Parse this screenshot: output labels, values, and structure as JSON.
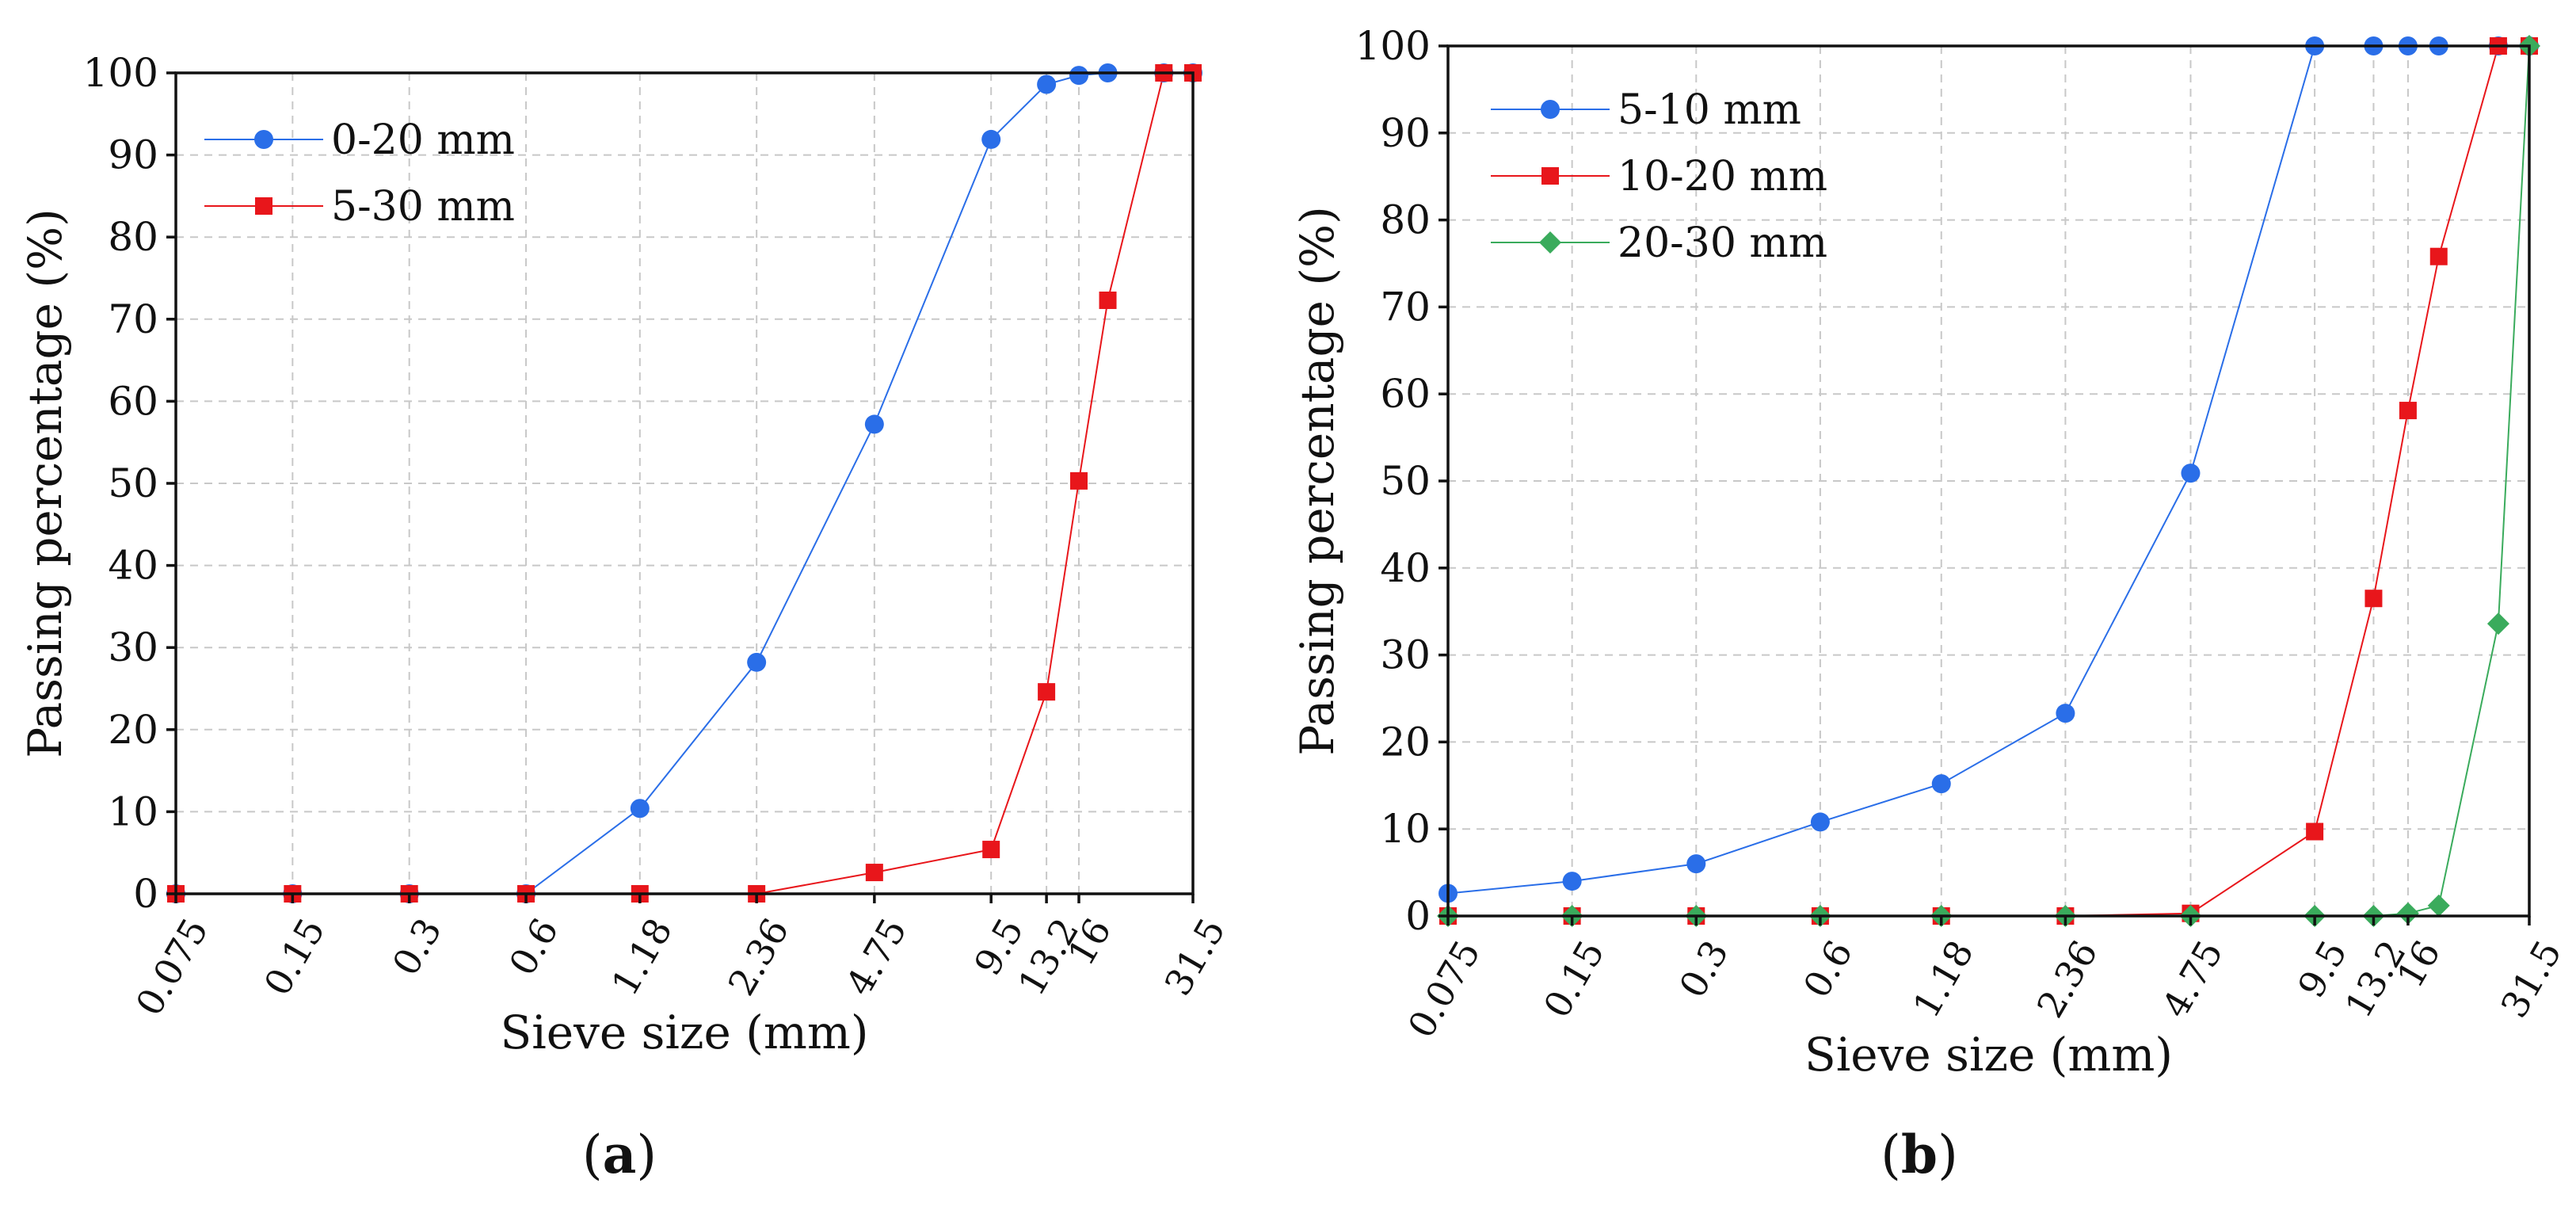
{
  "chart_data": [
    {
      "type": "line",
      "panel_label": "a",
      "title": "",
      "xlabel": "Sieve size (mm)",
      "ylabel": "Passing percentage (%)",
      "ylim": [
        0,
        100
      ],
      "yticks": [
        0,
        10,
        20,
        30,
        40,
        50,
        60,
        70,
        80,
        90,
        100
      ],
      "x_scale": "log",
      "xlim": [
        0.075,
        31.5
      ],
      "xticks": [
        0.075,
        0.15,
        0.3,
        0.6,
        1.18,
        2.36,
        4.75,
        9.5,
        13.2,
        16,
        31.5
      ],
      "xtick_labels": [
        "0.075",
        "0.15",
        "0.3",
        "0.6",
        "1.18",
        "2.36",
        "4.75",
        "9.5",
        "13.2",
        "16",
        "31.5"
      ],
      "grid": true,
      "legend_position": "top-left",
      "series": [
        {
          "name": "0-20 mm",
          "color": "#2a6ee8",
          "marker": "circle",
          "x": [
            0.075,
            0.15,
            0.3,
            0.6,
            1.18,
            2.36,
            4.75,
            9.5,
            13.2,
            16,
            19,
            26.5,
            31.5
          ],
          "y": [
            0,
            0,
            0,
            0,
            10.4,
            28.2,
            57.2,
            91.9,
            98.6,
            99.7,
            100,
            100,
            100
          ]
        },
        {
          "name": "5-30 mm",
          "color": "#e8161b",
          "marker": "square",
          "x": [
            0.075,
            0.15,
            0.3,
            0.6,
            1.18,
            2.36,
            4.75,
            9.5,
            13.2,
            16,
            19,
            26.5,
            31.5
          ],
          "y": [
            0,
            0,
            0,
            0,
            0,
            0,
            2.6,
            5.4,
            24.6,
            50.3,
            72.3,
            100,
            100
          ]
        }
      ]
    },
    {
      "type": "line",
      "panel_label": "b",
      "title": "",
      "xlabel": "Sieve size (mm)",
      "ylabel": "Passing percentage (%)",
      "ylim": [
        0,
        100
      ],
      "yticks": [
        0,
        10,
        20,
        30,
        40,
        50,
        60,
        70,
        80,
        90,
        100
      ],
      "x_scale": "log",
      "xlim": [
        0.075,
        31.5
      ],
      "xticks": [
        0.075,
        0.15,
        0.3,
        0.6,
        1.18,
        2.36,
        4.75,
        9.5,
        13.2,
        16,
        31.5
      ],
      "xtick_labels": [
        "0.075",
        "0.15",
        "0.3",
        "0.6",
        "1.18",
        "2.36",
        "4.75",
        "9.5",
        "13.2",
        "16",
        "31.5"
      ],
      "grid": true,
      "legend_position": "top-left",
      "series": [
        {
          "name": "5-10 mm",
          "color": "#2a6ee8",
          "marker": "circle",
          "x": [
            0.075,
            0.15,
            0.3,
            0.6,
            1.18,
            2.36,
            4.75,
            9.5,
            13.2,
            16,
            19,
            26.5,
            31.5
          ],
          "y": [
            2.6,
            4.0,
            6.0,
            10.8,
            15.2,
            23.3,
            50.9,
            100,
            100,
            100,
            100,
            100,
            100
          ]
        },
        {
          "name": "10-20 mm",
          "color": "#e8161b",
          "marker": "square",
          "x": [
            0.075,
            0.15,
            0.3,
            0.6,
            1.18,
            2.36,
            4.75,
            9.5,
            13.2,
            16,
            19,
            26.5,
            31.5
          ],
          "y": [
            0,
            0,
            0,
            0,
            0,
            0,
            0.3,
            9.7,
            36.5,
            58.1,
            75.8,
            100,
            100
          ]
        },
        {
          "name": "20-30 mm",
          "color": "#3aab5c",
          "marker": "diamond",
          "x": [
            0.075,
            0.15,
            0.3,
            0.6,
            1.18,
            2.36,
            4.75,
            9.5,
            13.2,
            16,
            19,
            26.5,
            31.5
          ],
          "y": [
            0,
            0,
            0,
            0,
            0,
            0,
            0,
            0,
            0,
            0.3,
            1.2,
            33.6,
            100
          ]
        }
      ]
    }
  ]
}
